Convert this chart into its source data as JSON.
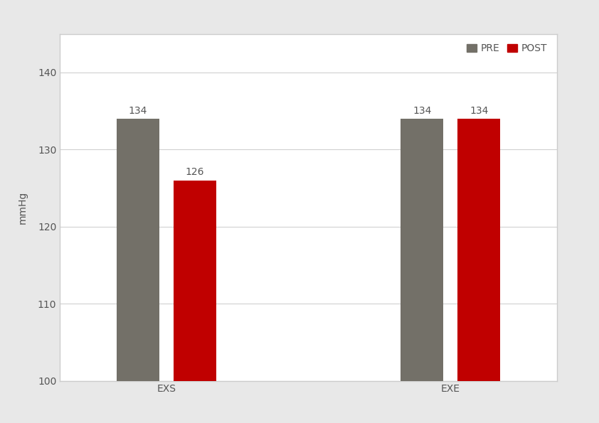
{
  "categories": [
    "EXS",
    "EXE"
  ],
  "pre_values": [
    134,
    134
  ],
  "post_values": [
    126,
    134
  ],
  "pre_color": "#737068",
  "post_color": "#C00000",
  "ylabel": "mmHg",
  "ylim": [
    100,
    145
  ],
  "yticks": [
    100,
    110,
    120,
    130,
    140
  ],
  "legend_labels": [
    "PRE",
    "POST"
  ],
  "bar_width": 0.18,
  "group_positions": [
    1.0,
    2.2
  ],
  "label_fontsize": 10,
  "axis_fontsize": 10,
  "legend_fontsize": 10,
  "value_label_color_pre": "#555555",
  "value_label_color_post": "#555555",
  "outer_bg_color": "#e8e8e8",
  "plot_bg_color": "#ffffff",
  "box_bg_color": "#ffffff",
  "grid_color": "#d0d0d0",
  "tick_label_color": "#555555",
  "spine_color": "#cccccc"
}
